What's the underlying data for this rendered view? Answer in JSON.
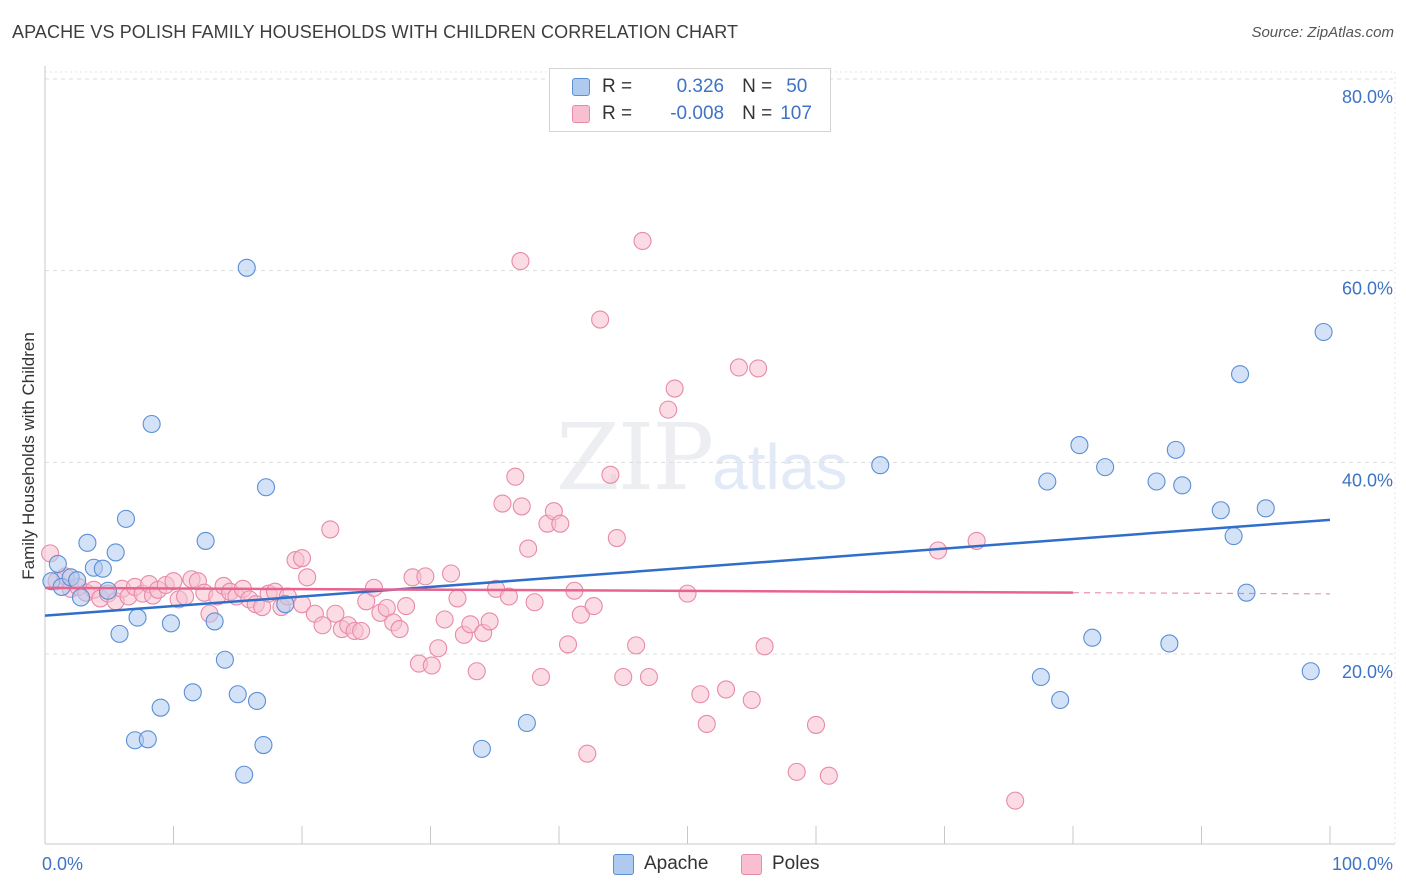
{
  "header": {
    "title": "APACHE VS POLISH FAMILY HOUSEHOLDS WITH CHILDREN CORRELATION CHART",
    "source": "Source: ZipAtlas.com"
  },
  "legend": {
    "apache": {
      "r_label": "R =",
      "r_value": "0.326",
      "n_label": "N =",
      "n_value": "50"
    },
    "poles": {
      "r_label": "R =",
      "r_value": "-0.008",
      "n_label": "N =",
      "n_value": "107"
    }
  },
  "bottom_legend": {
    "apache": "Apache",
    "poles": "Poles"
  },
  "watermark": {
    "zip": "ZIP",
    "atlas": "atlas"
  },
  "colors": {
    "apache_fill": "#aecbef",
    "apache_stroke": "#5b8fd6",
    "apache_line": "#2f6fc9",
    "poles_fill": "#f7bfd0",
    "poles_stroke": "#e88aa8",
    "poles_line": "#e8648f",
    "grid": "#dddddd",
    "tick_label": "#3e73c4"
  },
  "chart_data": {
    "type": "scatter",
    "title": "APACHE VS POLISH FAMILY HOUSEHOLDS WITH CHILDREN CORRELATION CHART",
    "xlabel": "",
    "ylabel": "Family Households with Children",
    "xlim": [
      0,
      100
    ],
    "ylim": [
      0,
      85
    ],
    "x_tick_labels": [
      "0.0%",
      "100.0%"
    ],
    "y_ticks": [
      20,
      40,
      60,
      80
    ],
    "y_tick_labels": [
      "20.0%",
      "40.0%",
      "60.0%",
      "80.0%"
    ],
    "grid": true,
    "legend_position": "top-center",
    "series": [
      {
        "name": "Apache",
        "r": 0.326,
        "n": 50,
        "trend": {
          "x": [
            0,
            100
          ],
          "y": [
            24.0,
            34.0
          ],
          "dashed_from": null
        },
        "points": [
          [
            0.5,
            27.6
          ],
          [
            1.0,
            29.4
          ],
          [
            1.3,
            27.0
          ],
          [
            2.0,
            28.0
          ],
          [
            2.5,
            27.7
          ],
          [
            2.8,
            25.9
          ],
          [
            3.3,
            31.6
          ],
          [
            3.8,
            29.0
          ],
          [
            4.5,
            28.9
          ],
          [
            5.5,
            30.6
          ],
          [
            5.8,
            22.1
          ],
          [
            6.3,
            34.1
          ],
          [
            7.2,
            23.8
          ],
          [
            8.3,
            44.0
          ],
          [
            9.8,
            23.2
          ],
          [
            11.5,
            16.0
          ],
          [
            12.5,
            31.8
          ],
          [
            13.2,
            23.4
          ],
          [
            14.0,
            19.4
          ],
          [
            15.0,
            15.8
          ],
          [
            15.7,
            60.3
          ],
          [
            16.5,
            15.1
          ],
          [
            17.0,
            10.5
          ],
          [
            17.2,
            37.4
          ],
          [
            18.7,
            25.2
          ],
          [
            7.0,
            11.0
          ],
          [
            8.0,
            11.1
          ],
          [
            9.0,
            14.4
          ],
          [
            15.5,
            7.4
          ],
          [
            34.0,
            10.1
          ],
          [
            37.5,
            12.8
          ],
          [
            65.0,
            39.7
          ],
          [
            77.5,
            17.6
          ],
          [
            78.0,
            38.0
          ],
          [
            79.0,
            15.2
          ],
          [
            80.5,
            41.8
          ],
          [
            81.5,
            21.7
          ],
          [
            82.5,
            39.5
          ],
          [
            86.5,
            38.0
          ],
          [
            87.5,
            21.1
          ],
          [
            88.0,
            41.3
          ],
          [
            88.5,
            37.6
          ],
          [
            91.5,
            35.0
          ],
          [
            92.5,
            32.3
          ],
          [
            93.0,
            49.2
          ],
          [
            93.5,
            26.4
          ],
          [
            95.0,
            35.2
          ],
          [
            98.5,
            18.2
          ],
          [
            99.5,
            53.6
          ],
          [
            4.9,
            26.6
          ]
        ]
      },
      {
        "name": "Poles",
        "r": -0.008,
        "n": 107,
        "trend": {
          "x": [
            0,
            80
          ],
          "y": [
            26.9,
            26.4
          ],
          "dashed_from": 80,
          "dashed_to": 100
        },
        "points": [
          [
            0.4,
            30.5
          ],
          [
            0.9,
            27.6
          ],
          [
            1.6,
            28.1
          ],
          [
            2.0,
            26.8
          ],
          [
            2.6,
            27.0
          ],
          [
            3.2,
            26.4
          ],
          [
            3.8,
            26.7
          ],
          [
            4.3,
            25.8
          ],
          [
            4.9,
            26.3
          ],
          [
            5.5,
            25.5
          ],
          [
            6.0,
            26.8
          ],
          [
            6.5,
            26.0
          ],
          [
            7.0,
            27.0
          ],
          [
            7.6,
            26.3
          ],
          [
            8.1,
            27.3
          ],
          [
            8.4,
            26.1
          ],
          [
            8.8,
            26.7
          ],
          [
            9.4,
            27.2
          ],
          [
            10.0,
            27.6
          ],
          [
            10.4,
            25.7
          ],
          [
            10.9,
            26.0
          ],
          [
            11.4,
            27.8
          ],
          [
            11.9,
            27.6
          ],
          [
            12.4,
            26.4
          ],
          [
            12.8,
            24.2
          ],
          [
            13.4,
            26.0
          ],
          [
            13.9,
            27.1
          ],
          [
            14.4,
            26.5
          ],
          [
            14.9,
            26.0
          ],
          [
            15.4,
            26.8
          ],
          [
            15.9,
            25.7
          ],
          [
            16.4,
            25.2
          ],
          [
            16.9,
            24.9
          ],
          [
            17.4,
            26.3
          ],
          [
            17.9,
            26.5
          ],
          [
            18.4,
            24.9
          ],
          [
            18.9,
            26.0
          ],
          [
            19.5,
            29.8
          ],
          [
            20.0,
            25.2
          ],
          [
            20.4,
            28.0
          ],
          [
            21.0,
            24.2
          ],
          [
            21.6,
            23.0
          ],
          [
            22.2,
            33.0
          ],
          [
            22.6,
            24.2
          ],
          [
            23.1,
            22.6
          ],
          [
            23.6,
            23.0
          ],
          [
            24.1,
            22.4
          ],
          [
            24.6,
            22.4
          ],
          [
            25.0,
            25.5
          ],
          [
            25.6,
            26.9
          ],
          [
            26.1,
            24.3
          ],
          [
            26.6,
            24.8
          ],
          [
            27.1,
            23.3
          ],
          [
            27.6,
            22.6
          ],
          [
            28.1,
            25.0
          ],
          [
            28.6,
            28.0
          ],
          [
            29.1,
            19.0
          ],
          [
            29.6,
            28.1
          ],
          [
            30.1,
            18.8
          ],
          [
            30.6,
            20.6
          ],
          [
            31.1,
            23.6
          ],
          [
            31.6,
            28.4
          ],
          [
            32.1,
            25.8
          ],
          [
            32.6,
            22.0
          ],
          [
            33.1,
            23.1
          ],
          [
            33.6,
            18.2
          ],
          [
            34.1,
            22.2
          ],
          [
            34.6,
            23.4
          ],
          [
            35.1,
            26.8
          ],
          [
            35.6,
            35.7
          ],
          [
            36.1,
            26.0
          ],
          [
            36.6,
            38.5
          ],
          [
            37.1,
            35.4
          ],
          [
            37.6,
            31.0
          ],
          [
            38.1,
            25.4
          ],
          [
            38.6,
            17.6
          ],
          [
            39.1,
            33.6
          ],
          [
            39.6,
            34.9
          ],
          [
            40.1,
            33.6
          ],
          [
            40.7,
            21.0
          ],
          [
            41.2,
            26.6
          ],
          [
            41.7,
            24.1
          ],
          [
            42.2,
            9.6
          ],
          [
            42.7,
            25.0
          ],
          [
            43.2,
            54.9
          ],
          [
            44.0,
            38.7
          ],
          [
            44.5,
            32.1
          ],
          [
            45.0,
            17.6
          ],
          [
            46.0,
            20.9
          ],
          [
            46.5,
            63.1
          ],
          [
            47.0,
            17.6
          ],
          [
            48.5,
            45.5
          ],
          [
            49.0,
            47.7
          ],
          [
            50.0,
            26.3
          ],
          [
            51.0,
            15.8
          ],
          [
            51.5,
            12.7
          ],
          [
            53.0,
            16.3
          ],
          [
            54.0,
            49.9
          ],
          [
            55.0,
            15.2
          ],
          [
            55.5,
            49.8
          ],
          [
            56.0,
            20.8
          ],
          [
            58.5,
            7.7
          ],
          [
            60.0,
            12.6
          ],
          [
            61.0,
            7.3
          ],
          [
            69.5,
            30.8
          ],
          [
            72.5,
            31.8
          ],
          [
            75.5,
            4.7
          ],
          [
            37.0,
            61.0
          ],
          [
            20.0,
            30.0
          ]
        ]
      }
    ]
  }
}
